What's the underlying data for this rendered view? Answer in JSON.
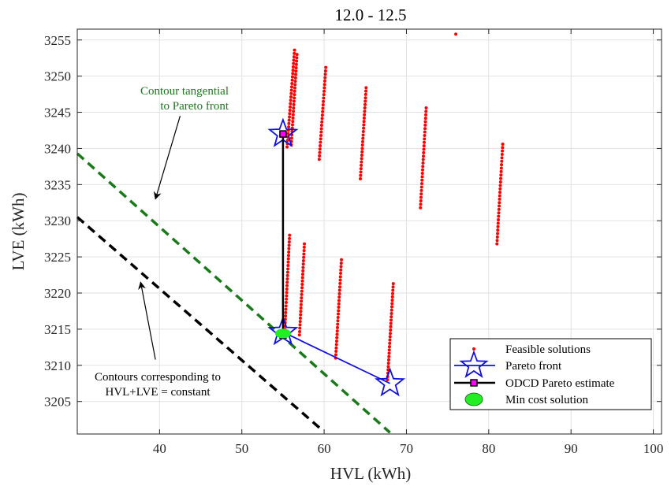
{
  "chart_data": {
    "type": "scatter",
    "title": "12.0 - 12.5",
    "xlabel": "HVL (kWh)",
    "ylabel": "LVE (kWh)",
    "xlim": [
      30,
      101
    ],
    "ylim": [
      3200.5,
      3256.5
    ],
    "xticks": [
      40,
      50,
      60,
      70,
      80,
      90,
      100
    ],
    "yticks": [
      3205,
      3210,
      3215,
      3220,
      3225,
      3230,
      3235,
      3240,
      3245,
      3250,
      3255
    ],
    "grid": true,
    "legend_position": "bottom-right",
    "series": [
      {
        "name": "Feasible solutions",
        "kind": "dotted-columns",
        "color": "#ff0000",
        "columns": [
          {
            "x": [
              55.5,
              56.4
            ],
            "y": [
              3240.2,
              3253.6
            ],
            "n": 30
          },
          {
            "x": [
              56.0,
              56.7
            ],
            "y": [
              3240.5,
              3253.0
            ],
            "n": 28
          },
          {
            "x": [
              59.4,
              60.2
            ],
            "y": [
              3238.5,
              3251.2
            ],
            "n": 28
          },
          {
            "x": [
              64.4,
              65.1
            ],
            "y": [
              3235.8,
              3248.4
            ],
            "n": 28
          },
          {
            "x": [
              71.7,
              72.4
            ],
            "y": [
              3231.8,
              3245.6
            ],
            "n": 30
          },
          {
            "x": [
              81.0,
              81.7
            ],
            "y": [
              3226.8,
              3240.6
            ],
            "n": 30
          },
          {
            "x": [
              55.2,
              55.8
            ],
            "y": [
              3214.5,
              3228.0
            ],
            "n": 30
          },
          {
            "x": [
              57.0,
              57.6
            ],
            "y": [
              3214.2,
              3226.8
            ],
            "n": 28
          },
          {
            "x": [
              61.4,
              62.1
            ],
            "y": [
              3211.0,
              3224.6
            ],
            "n": 30
          },
          {
            "x": [
              67.7,
              68.4
            ],
            "y": [
              3208.0,
              3221.3
            ],
            "n": 30
          }
        ],
        "extra_points": [
          [
            76.0,
            3255.8
          ]
        ]
      },
      {
        "name": "Pareto front",
        "kind": "line-star",
        "color": "#1010e0",
        "points": [
          [
            55.0,
            3242.0
          ],
          [
            55.0,
            3214.6
          ],
          [
            68.0,
            3207.5
          ]
        ]
      },
      {
        "name": "ODCD Pareto estimate",
        "kind": "line-square",
        "color": "#000000",
        "marker_fill": "#ff00ff",
        "points": [
          [
            55.0,
            3242.0
          ],
          [
            55.0,
            3214.2
          ]
        ]
      },
      {
        "name": "Min cost solution",
        "kind": "marker",
        "color": "#22ee22",
        "points": [
          [
            55.0,
            3214.4
          ]
        ]
      }
    ],
    "contours": [
      {
        "name": "Contour tangential to Pareto front",
        "color": "#1a7a1a",
        "from": [
          30.0,
          3239.3
        ],
        "to": [
          68.0,
          3200.7
        ]
      },
      {
        "name": "Contours corresponding to HVL+LVE = constant",
        "color": "#000000",
        "from": [
          30.0,
          3230.5
        ],
        "to": [
          59.5,
          3201.3
        ]
      }
    ],
    "annotations": [
      {
        "lines": [
          "Contour tangential",
          "to Pareto front"
        ],
        "color": "#1a7a1a",
        "arrow_from": [
          42.5,
          3244.5
        ],
        "arrow_to": [
          39.5,
          3233.0
        ]
      },
      {
        "lines": [
          "Contours corresponding to",
          "HVL+LVE = constant"
        ],
        "color": "#000000",
        "arrow_from": [
          39.5,
          3210.8
        ],
        "arrow_to": [
          37.7,
          3221.5
        ]
      }
    ]
  }
}
